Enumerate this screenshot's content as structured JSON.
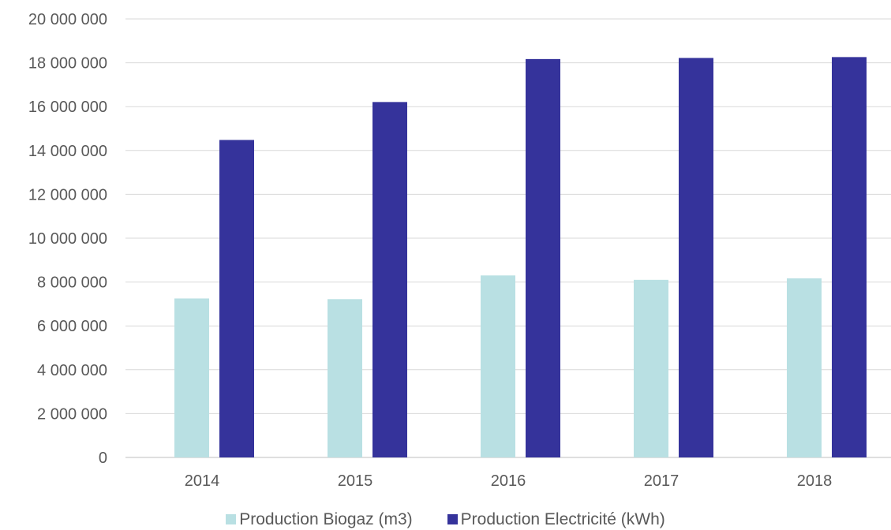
{
  "chart_data": {
    "type": "bar",
    "categories": [
      "2014",
      "2015",
      "2016",
      "2017",
      "2018"
    ],
    "series": [
      {
        "name": "Production Biogaz (m3)",
        "color": "#b9e0e3",
        "values": [
          7250000,
          7220000,
          8300000,
          8100000,
          8170000
        ]
      },
      {
        "name": "Production Electricité (kWh)",
        "color": "#35339b",
        "values": [
          14480000,
          16210000,
          18170000,
          18220000,
          18260000
        ]
      }
    ],
    "y_ticks": [
      "0",
      "2 000 000",
      "4 000 000",
      "6 000 000",
      "8 000 000",
      "10 000 000",
      "12 000 000",
      "14 000 000",
      "16 000 000",
      "18 000 000",
      "20 000 000"
    ],
    "ylim": [
      0,
      20000000
    ],
    "grid": true,
    "legend_position": "bottom",
    "title": "",
    "xlabel": "",
    "ylabel": ""
  }
}
